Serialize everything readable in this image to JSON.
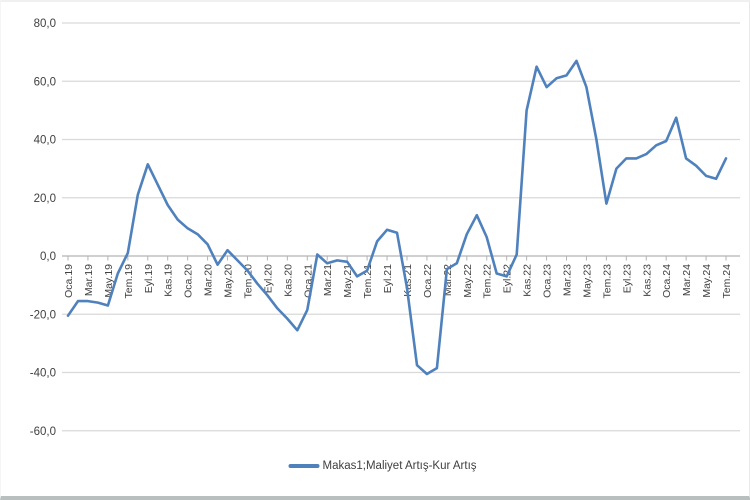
{
  "chart_data": {
    "type": "line",
    "legend_label": "Makas1;Maliyet Artış-Kur Artış",
    "legend_position": "bottom",
    "grid": true,
    "ylim": [
      -60,
      80
    ],
    "ytick_step": 20,
    "y_ticks": [
      80,
      60,
      40,
      20,
      0,
      -20,
      -40,
      -60
    ],
    "y_tick_labels": [
      "80,0",
      "60,0",
      "40,0",
      "20,0",
      "0,0",
      "-20,0",
      "-40,0",
      "-60,0"
    ],
    "x_tick_labels": [
      "Oca.19",
      "Mar.19",
      "May.19",
      "Tem.19",
      "Eyl.19",
      "Kas.19",
      "Oca.20",
      "Mar.20",
      "May.20",
      "Tem.20",
      "Eyl.20",
      "Kas.20",
      "Oca.21",
      "Mar.21",
      "May.21",
      "Tem.21",
      "Eyl.21",
      "Kas.21",
      "Oca.22",
      "Mar.22",
      "May.22",
      "Tem.22",
      "Eyl.22",
      "Kas.22",
      "Oca.23",
      "Mar.23",
      "May.23",
      "Tem.23",
      "Eyl.23",
      "Kas.23",
      "Oca.24",
      "Mar.24",
      "May.24",
      "Tem.24"
    ],
    "points_per_x_tick": 2,
    "n_points": 67,
    "series": [
      {
        "name": "Makas1;Maliyet Artış-Kur Artış",
        "color": "#4f81bd",
        "values": [
          -20.5,
          -15.5,
          -15.5,
          -16,
          -17,
          -6,
          1,
          21,
          31.5,
          24.5,
          17.5,
          12.5,
          9.5,
          7.5,
          4,
          -3,
          2,
          -1.5,
          -5,
          -9.5,
          -13.5,
          -18,
          -21.5,
          -25.5,
          -18.5,
          0.5,
          -2.5,
          -1.5,
          -2,
          -7,
          -5,
          5,
          9,
          8,
          -11,
          -37.5,
          -40.5,
          -38.5,
          -4.5,
          -2.5,
          7.5,
          14,
          6.5,
          -6,
          -7,
          0.5,
          50,
          65,
          58,
          61,
          62,
          67,
          58,
          40,
          18,
          30,
          33.5,
          33.5,
          35,
          38,
          39.5,
          47.5,
          33.5,
          31,
          27.5,
          26.5,
          33.5
        ]
      }
    ],
    "colors": {
      "line": "#4f81bd",
      "gridline": "#d9d9d9",
      "axis": "#b3b3b3",
      "tick_text": "#404040"
    }
  }
}
